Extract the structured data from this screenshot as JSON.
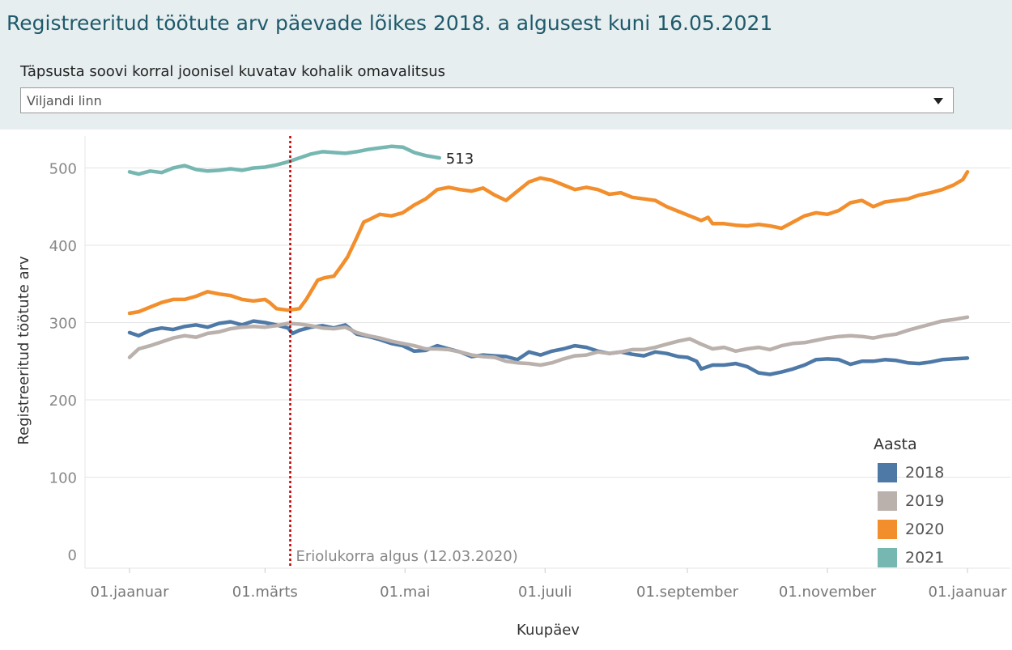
{
  "header": {
    "title": "Registreeritud töötute arv päevade lõikes 2018. a algusest kuni 16.05.2021",
    "filter_label": "Täpsusta soovi korral  joonisel kuvatav kohalik omavalitsus",
    "filter_value": "Viljandi linn"
  },
  "chart_data": {
    "type": "line",
    "title": "",
    "xlabel": "Kuupäev",
    "ylabel": "Registreeritud töötute arv",
    "ylim": [
      0,
      560
    ],
    "yticks": [
      0,
      100,
      200,
      300,
      400,
      500
    ],
    "x_unit": "day of year",
    "x_ticks": [
      {
        "day": 1,
        "label": "01.jaanuar"
      },
      {
        "day": 60,
        "label": "01.märts"
      },
      {
        "day": 121,
        "label": "01.mai"
      },
      {
        "day": 182,
        "label": "01.juuli"
      },
      {
        "day": 244,
        "label": "01.september"
      },
      {
        "day": 305,
        "label": "01.november"
      },
      {
        "day": 366,
        "label": "01.jaanuar"
      }
    ],
    "grid": true,
    "legend": {
      "title": "Aasta",
      "position": "bottom-right"
    },
    "reference_line": {
      "day": 71,
      "label": "Eriolukorra algus (12.03.2020)"
    },
    "end_label": {
      "series": "2021",
      "value": "513"
    },
    "series": [
      {
        "name": "2018",
        "color": "#4e79a7",
        "points": [
          [
            1,
            287
          ],
          [
            5,
            283
          ],
          [
            10,
            290
          ],
          [
            15,
            293
          ],
          [
            20,
            291
          ],
          [
            25,
            295
          ],
          [
            30,
            297
          ],
          [
            35,
            294
          ],
          [
            40,
            299
          ],
          [
            45,
            301
          ],
          [
            50,
            297
          ],
          [
            55,
            302
          ],
          [
            60,
            300
          ],
          [
            65,
            297
          ],
          [
            70,
            293
          ],
          [
            72,
            286
          ],
          [
            75,
            290
          ],
          [
            80,
            294
          ],
          [
            85,
            296
          ],
          [
            90,
            293
          ],
          [
            95,
            297
          ],
          [
            100,
            285
          ],
          [
            105,
            282
          ],
          [
            110,
            278
          ],
          [
            115,
            273
          ],
          [
            120,
            270
          ],
          [
            125,
            263
          ],
          [
            130,
            264
          ],
          [
            135,
            270
          ],
          [
            140,
            266
          ],
          [
            145,
            262
          ],
          [
            150,
            256
          ],
          [
            155,
            258
          ],
          [
            160,
            257
          ],
          [
            165,
            256
          ],
          [
            170,
            252
          ],
          [
            175,
            262
          ],
          [
            180,
            258
          ],
          [
            185,
            263
          ],
          [
            190,
            266
          ],
          [
            195,
            270
          ],
          [
            200,
            268
          ],
          [
            205,
            263
          ],
          [
            210,
            260
          ],
          [
            215,
            262
          ],
          [
            220,
            259
          ],
          [
            225,
            257
          ],
          [
            230,
            262
          ],
          [
            235,
            260
          ],
          [
            240,
            256
          ],
          [
            244,
            255
          ],
          [
            248,
            250
          ],
          [
            250,
            240
          ],
          [
            255,
            245
          ],
          [
            260,
            245
          ],
          [
            265,
            247
          ],
          [
            270,
            243
          ],
          [
            275,
            235
          ],
          [
            280,
            233
          ],
          [
            285,
            236
          ],
          [
            290,
            240
          ],
          [
            295,
            245
          ],
          [
            300,
            252
          ],
          [
            305,
            253
          ],
          [
            310,
            252
          ],
          [
            315,
            246
          ],
          [
            320,
            250
          ],
          [
            325,
            250
          ],
          [
            330,
            252
          ],
          [
            335,
            251
          ],
          [
            340,
            248
          ],
          [
            345,
            247
          ],
          [
            350,
            249
          ],
          [
            355,
            252
          ],
          [
            360,
            253
          ],
          [
            366,
            254
          ]
        ]
      },
      {
        "name": "2019",
        "color": "#bab0ac",
        "points": [
          [
            1,
            255
          ],
          [
            5,
            266
          ],
          [
            10,
            270
          ],
          [
            15,
            275
          ],
          [
            20,
            280
          ],
          [
            25,
            283
          ],
          [
            30,
            281
          ],
          [
            35,
            286
          ],
          [
            40,
            288
          ],
          [
            45,
            292
          ],
          [
            50,
            294
          ],
          [
            55,
            295
          ],
          [
            60,
            294
          ],
          [
            65,
            296
          ],
          [
            70,
            299
          ],
          [
            75,
            298
          ],
          [
            80,
            296
          ],
          [
            85,
            293
          ],
          [
            90,
            292
          ],
          [
            95,
            294
          ],
          [
            100,
            287
          ],
          [
            105,
            283
          ],
          [
            110,
            280
          ],
          [
            115,
            276
          ],
          [
            120,
            273
          ],
          [
            125,
            270
          ],
          [
            130,
            266
          ],
          [
            135,
            266
          ],
          [
            140,
            265
          ],
          [
            145,
            262
          ],
          [
            150,
            258
          ],
          [
            155,
            256
          ],
          [
            160,
            255
          ],
          [
            165,
            250
          ],
          [
            170,
            248
          ],
          [
            175,
            247
          ],
          [
            180,
            245
          ],
          [
            185,
            248
          ],
          [
            190,
            253
          ],
          [
            195,
            257
          ],
          [
            200,
            258
          ],
          [
            205,
            262
          ],
          [
            210,
            260
          ],
          [
            215,
            262
          ],
          [
            220,
            265
          ],
          [
            225,
            265
          ],
          [
            230,
            268
          ],
          [
            235,
            272
          ],
          [
            240,
            276
          ],
          [
            245,
            279
          ],
          [
            250,
            272
          ],
          [
            255,
            266
          ],
          [
            260,
            268
          ],
          [
            265,
            263
          ],
          [
            270,
            266
          ],
          [
            275,
            268
          ],
          [
            280,
            265
          ],
          [
            285,
            270
          ],
          [
            290,
            273
          ],
          [
            295,
            274
          ],
          [
            300,
            277
          ],
          [
            305,
            280
          ],
          [
            310,
            282
          ],
          [
            315,
            283
          ],
          [
            320,
            282
          ],
          [
            325,
            280
          ],
          [
            330,
            283
          ],
          [
            335,
            285
          ],
          [
            340,
            290
          ],
          [
            345,
            294
          ],
          [
            350,
            298
          ],
          [
            355,
            302
          ],
          [
            360,
            304
          ],
          [
            366,
            307
          ]
        ]
      },
      {
        "name": "2020",
        "color": "#f28e2b",
        "points": [
          [
            1,
            312
          ],
          [
            5,
            314
          ],
          [
            10,
            320
          ],
          [
            15,
            326
          ],
          [
            20,
            330
          ],
          [
            25,
            330
          ],
          [
            30,
            334
          ],
          [
            35,
            340
          ],
          [
            40,
            337
          ],
          [
            45,
            335
          ],
          [
            50,
            330
          ],
          [
            55,
            328
          ],
          [
            60,
            330
          ],
          [
            62,
            326
          ],
          [
            65,
            318
          ],
          [
            70,
            316
          ],
          [
            75,
            318
          ],
          [
            78,
            330
          ],
          [
            80,
            340
          ],
          [
            83,
            355
          ],
          [
            86,
            358
          ],
          [
            90,
            360
          ],
          [
            93,
            372
          ],
          [
            96,
            385
          ],
          [
            100,
            410
          ],
          [
            103,
            430
          ],
          [
            106,
            434
          ],
          [
            110,
            440
          ],
          [
            115,
            438
          ],
          [
            120,
            442
          ],
          [
            125,
            452
          ],
          [
            130,
            460
          ],
          [
            135,
            472
          ],
          [
            140,
            475
          ],
          [
            145,
            472
          ],
          [
            150,
            470
          ],
          [
            155,
            474
          ],
          [
            160,
            465
          ],
          [
            165,
            458
          ],
          [
            170,
            470
          ],
          [
            175,
            482
          ],
          [
            180,
            487
          ],
          [
            185,
            484
          ],
          [
            190,
            478
          ],
          [
            195,
            472
          ],
          [
            200,
            475
          ],
          [
            205,
            472
          ],
          [
            210,
            466
          ],
          [
            215,
            468
          ],
          [
            220,
            462
          ],
          [
            225,
            460
          ],
          [
            230,
            458
          ],
          [
            235,
            450
          ],
          [
            240,
            444
          ],
          [
            245,
            438
          ],
          [
            250,
            432
          ],
          [
            253,
            436
          ],
          [
            255,
            428
          ],
          [
            260,
            428
          ],
          [
            265,
            426
          ],
          [
            270,
            425
          ],
          [
            275,
            427
          ],
          [
            280,
            425
          ],
          [
            285,
            422
          ],
          [
            290,
            430
          ],
          [
            295,
            438
          ],
          [
            300,
            442
          ],
          [
            305,
            440
          ],
          [
            310,
            445
          ],
          [
            315,
            455
          ],
          [
            320,
            458
          ],
          [
            325,
            450
          ],
          [
            330,
            456
          ],
          [
            335,
            458
          ],
          [
            340,
            460
          ],
          [
            345,
            465
          ],
          [
            350,
            468
          ],
          [
            355,
            472
          ],
          [
            360,
            478
          ],
          [
            364,
            485
          ],
          [
            366,
            495
          ]
        ]
      },
      {
        "name": "2021",
        "color": "#76b7b2",
        "points": [
          [
            1,
            495
          ],
          [
            5,
            492
          ],
          [
            10,
            496
          ],
          [
            15,
            494
          ],
          [
            20,
            500
          ],
          [
            25,
            503
          ],
          [
            30,
            498
          ],
          [
            35,
            496
          ],
          [
            40,
            497
          ],
          [
            45,
            499
          ],
          [
            50,
            497
          ],
          [
            55,
            500
          ],
          [
            60,
            501
          ],
          [
            65,
            504
          ],
          [
            70,
            508
          ],
          [
            75,
            513
          ],
          [
            80,
            518
          ],
          [
            85,
            521
          ],
          [
            90,
            520
          ],
          [
            95,
            519
          ],
          [
            100,
            521
          ],
          [
            105,
            524
          ],
          [
            110,
            526
          ],
          [
            115,
            528
          ],
          [
            120,
            527
          ],
          [
            125,
            520
          ],
          [
            130,
            516
          ],
          [
            136,
            513
          ]
        ]
      }
    ]
  }
}
